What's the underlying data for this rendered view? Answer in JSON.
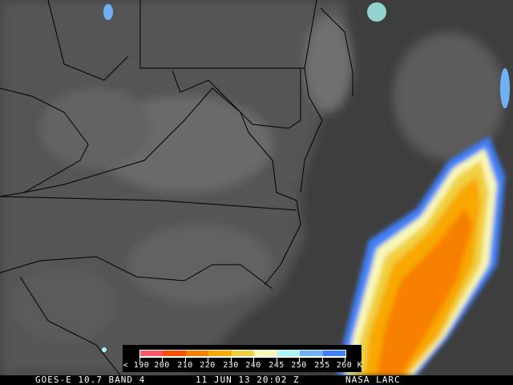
{
  "legend": {
    "unit": "K",
    "labels": [
      "< 190",
      "200",
      "210",
      "220",
      "230",
      "240",
      "245",
      "250",
      "255",
      "260 K"
    ],
    "colors": [
      "#f85868",
      "#f85000",
      "#f88000",
      "#f8a800",
      "#f0d040",
      "#f8f8b8",
      "#a8f8f8",
      "#70b0f8",
      "#4080f8"
    ]
  },
  "footer": {
    "satellite": "GOES-E 10.7 BAND 4",
    "datetime": "11 JUN 13 20:02 Z",
    "credit": "NASA LARC"
  }
}
